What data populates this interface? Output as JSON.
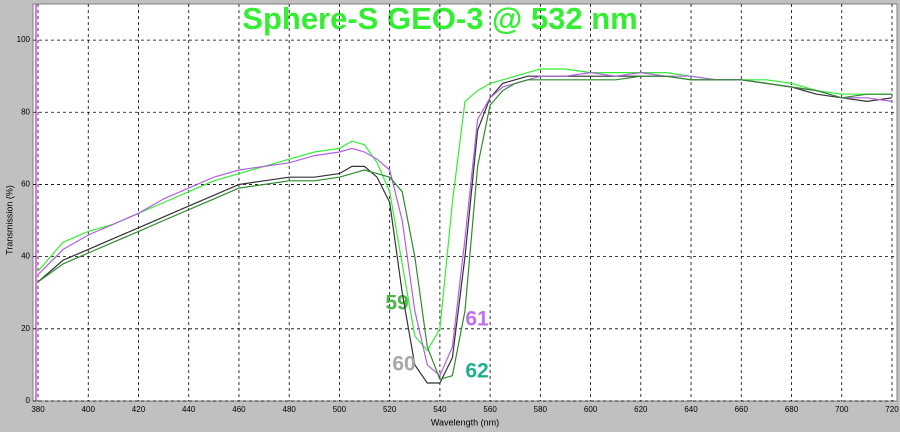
{
  "chart_data": {
    "type": "line",
    "title": "Sphere-S GEO-3 @ 532 nm",
    "title_color": "#33ee33",
    "x_label": "Wavelength (nm)",
    "y_label": "Transmission (%)",
    "x": [
      380,
      390,
      400,
      410,
      420,
      430,
      440,
      450,
      460,
      470,
      480,
      490,
      500,
      505,
      510,
      515,
      520,
      525,
      530,
      535,
      540,
      545,
      550,
      555,
      560,
      565,
      570,
      575,
      580,
      590,
      600,
      610,
      620,
      630,
      640,
      650,
      660,
      670,
      680,
      690,
      700,
      710,
      720
    ],
    "series": [
      {
        "name": "59",
        "color": "#33ee33",
        "label_color": "#4cb84c",
        "values": [
          36,
          44,
          47,
          49,
          52,
          55,
          58,
          61,
          63,
          65,
          67,
          69,
          70,
          72,
          71,
          66,
          58,
          38,
          18,
          14,
          20,
          55,
          83,
          86,
          88,
          89,
          90,
          91,
          92,
          92,
          91,
          91,
          91,
          91,
          90,
          89,
          89,
          89,
          88,
          86,
          85,
          85,
          85
        ]
      },
      {
        "name": "60",
        "color": "#333333",
        "label_color": "#a8a8a8",
        "values": [
          33,
          39,
          42,
          45,
          48,
          51,
          54,
          57,
          60,
          61,
          62,
          62,
          63,
          65,
          65,
          62,
          55,
          30,
          10,
          5,
          5,
          12,
          40,
          75,
          84,
          88,
          89,
          90,
          90,
          90,
          90,
          90,
          90,
          90,
          89,
          89,
          89,
          88,
          87,
          85,
          84,
          83,
          84
        ]
      },
      {
        "name": "61",
        "color": "#b060e0",
        "label_color": "#c070e8",
        "values": [
          35,
          42,
          46,
          49,
          52,
          56,
          59,
          62,
          64,
          65,
          66,
          68,
          69,
          70,
          69,
          67,
          64,
          50,
          25,
          10,
          7,
          15,
          45,
          78,
          84,
          87,
          88,
          89,
          90,
          90,
          91,
          90,
          91,
          90,
          90,
          89,
          89,
          88,
          87,
          86,
          84,
          84,
          83
        ]
      },
      {
        "name": "62",
        "color": "#2e8b2e",
        "label_color": "#20b090",
        "values": [
          33,
          38,
          41,
          44,
          47,
          50,
          53,
          56,
          59,
          60,
          61,
          61,
          62,
          63,
          64,
          63,
          62,
          58,
          40,
          15,
          6,
          7,
          25,
          65,
          82,
          86,
          88,
          89,
          89,
          89,
          89,
          89,
          90,
          90,
          89,
          89,
          89,
          88,
          87,
          86,
          84,
          85,
          85
        ]
      }
    ],
    "xlim": [
      378,
      722
    ],
    "ylim": [
      0,
      110
    ],
    "xticks": [
      380,
      400,
      420,
      440,
      460,
      480,
      500,
      520,
      540,
      560,
      580,
      600,
      620,
      640,
      660,
      680,
      700,
      720
    ],
    "yticks": [
      0,
      20,
      40,
      60,
      80,
      100
    ],
    "grid": true
  }
}
